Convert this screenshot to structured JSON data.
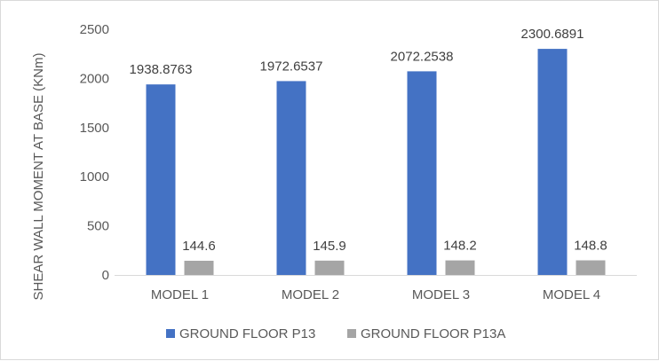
{
  "chart_data": {
    "type": "bar",
    "title": "",
    "xlabel": "",
    "ylabel": "SHEAR WALL MOMENT AT BASE (KNm)",
    "ylim": [
      0,
      2500
    ],
    "yticks": [
      0,
      500,
      1000,
      1500,
      2000,
      2500
    ],
    "grid": false,
    "legend_position": "bottom",
    "categories": [
      "MODEL 1",
      "MODEL 2",
      "MODEL 3",
      "MODEL 4"
    ],
    "series": [
      {
        "name": "GROUND FLOOR P13",
        "color": "#4472c4",
        "values": [
          1938.8763,
          1972.6537,
          2072.2538,
          2300.6891
        ],
        "labels": [
          "1938.8763",
          "1972.6537",
          "2072.2538",
          "2300.6891"
        ]
      },
      {
        "name": "GROUND FLOOR P13A",
        "color": "#a5a5a5",
        "values": [
          144.6,
          145.9,
          148.2,
          148.8
        ],
        "labels": [
          "144.6",
          "145.9",
          "148.2",
          "148.8"
        ]
      }
    ]
  }
}
